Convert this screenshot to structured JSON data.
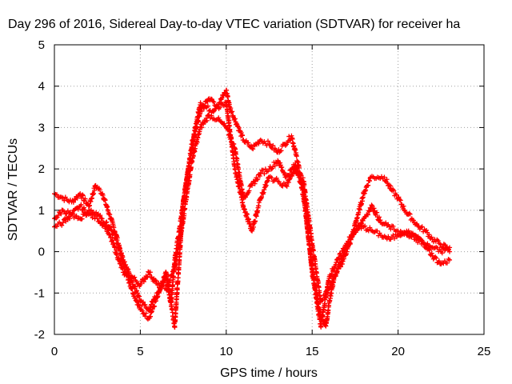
{
  "chart_data": {
    "type": "scatter",
    "title": "Day 296 of 2016, Sidereal Day-to-day VTEC variation (SDTVAR) for receiver ha",
    "xlabel": "GPS time / hours",
    "ylabel": "SDTVAR / TECUs",
    "xlim": [
      0,
      25
    ],
    "ylim": [
      -2,
      5
    ],
    "xticks": [
      "0",
      "5",
      "10",
      "15",
      "20",
      "25"
    ],
    "yticks": [
      "-2",
      "-1",
      "0",
      "1",
      "2",
      "3",
      "4",
      "5"
    ],
    "grid": true,
    "legend": "none",
    "marker": "plus",
    "color": "#ff0000",
    "series": [
      {
        "x": [
          0.0,
          0.5,
          1.0,
          1.5,
          2.0,
          2.4,
          2.8,
          3.2,
          3.6,
          4.0,
          4.5,
          5.0,
          5.5,
          6.0,
          6.5,
          6.8,
          7.0,
          7.3,
          7.6,
          8.0,
          8.3,
          8.5,
          8.8,
          9.2,
          9.6,
          10.0,
          10.2,
          10.6,
          11.0,
          11.5,
          12.0,
          12.5,
          13.0,
          13.4,
          13.8,
          14.2,
          14.6,
          15.0,
          15.4,
          15.8,
          16.0,
          16.3,
          16.7,
          17.2,
          17.6,
          18.0,
          18.4,
          18.8,
          19.2,
          19.6,
          20.0,
          20.4,
          20.8,
          21.2,
          21.6,
          22.0,
          22.4,
          22.8,
          23.0
        ],
        "y": [
          1.4,
          1.3,
          1.2,
          1.4,
          1.1,
          1.6,
          1.4,
          0.9,
          0.4,
          -0.3,
          -0.9,
          -1.4,
          -1.6,
          -1.1,
          -0.5,
          -1.2,
          -0.2,
          0.6,
          1.5,
          2.5,
          3.2,
          3.6,
          3.5,
          3.4,
          3.6,
          3.9,
          3.5,
          3.1,
          2.7,
          2.5,
          2.7,
          2.6,
          2.4,
          2.6,
          2.8,
          2.1,
          1.0,
          -0.4,
          -1.4,
          -1.8,
          -1.2,
          -0.6,
          -0.3,
          0.2,
          0.8,
          1.4,
          1.8,
          1.8,
          1.8,
          1.5,
          1.3,
          1.0,
          0.8,
          0.6,
          0.5,
          0.3,
          0.2,
          0.1,
          0.0
        ]
      },
      {
        "x": [
          0.0,
          0.5,
          1.0,
          1.5,
          2.0,
          2.5,
          3.0,
          3.5,
          4.0,
          4.5,
          5.0,
          5.5,
          6.0,
          6.5,
          7.0,
          7.5,
          8.0,
          8.5,
          9.0,
          9.5,
          10.0,
          10.5,
          11.0,
          11.5,
          12.0,
          12.5,
          13.0,
          13.5,
          14.0,
          14.5,
          15.0,
          15.5,
          16.0,
          16.5,
          17.0,
          17.5,
          18.0,
          18.5,
          19.0,
          19.5,
          20.0,
          20.5,
          21.0,
          21.5,
          22.0,
          22.5,
          23.0
        ],
        "y": [
          0.8,
          1.0,
          0.9,
          1.1,
          0.9,
          0.8,
          0.6,
          0.1,
          -0.5,
          -0.6,
          -0.8,
          -0.5,
          -0.8,
          -0.9,
          -0.4,
          0.8,
          2.2,
          3.0,
          3.3,
          3.2,
          3.0,
          2.5,
          1.3,
          1.6,
          1.9,
          2.0,
          2.2,
          1.8,
          2.1,
          1.7,
          0.2,
          -1.2,
          -0.9,
          -0.4,
          0.1,
          0.5,
          0.8,
          1.1,
          0.7,
          0.6,
          0.5,
          0.4,
          0.4,
          0.2,
          -0.1,
          -0.3,
          -0.2
        ]
      },
      {
        "x": [
          0.0,
          0.5,
          1.0,
          1.5,
          2.0,
          2.5,
          3.0,
          3.5,
          4.0,
          4.5,
          5.0,
          5.5,
          6.0,
          6.5,
          7.0,
          7.5,
          8.0,
          8.5,
          9.0,
          9.5,
          10.0,
          10.5,
          11.0,
          11.5,
          12.0,
          12.5,
          13.0,
          13.5,
          14.0,
          14.5,
          15.0,
          15.5,
          16.0,
          16.5,
          17.0,
          17.5,
          18.0,
          18.5,
          19.0,
          19.5,
          20.0,
          20.5,
          21.0,
          21.5,
          22.0,
          22.5,
          23.0
        ],
        "y": [
          0.6,
          0.7,
          0.9,
          0.8,
          1.0,
          0.9,
          0.7,
          0.4,
          -0.2,
          -0.7,
          -1.2,
          -1.4,
          -1.0,
          -0.6,
          -1.8,
          1.2,
          2.6,
          3.4,
          3.7,
          3.5,
          3.6,
          2.0,
          1.1,
          0.5,
          1.3,
          1.8,
          1.7,
          1.6,
          2.0,
          1.5,
          -0.5,
          -1.8,
          -0.6,
          -0.2,
          0.2,
          0.5,
          0.6,
          0.5,
          0.4,
          0.3,
          0.4,
          0.5,
          0.3,
          0.2,
          0.1,
          0.0,
          0.1
        ]
      }
    ]
  }
}
